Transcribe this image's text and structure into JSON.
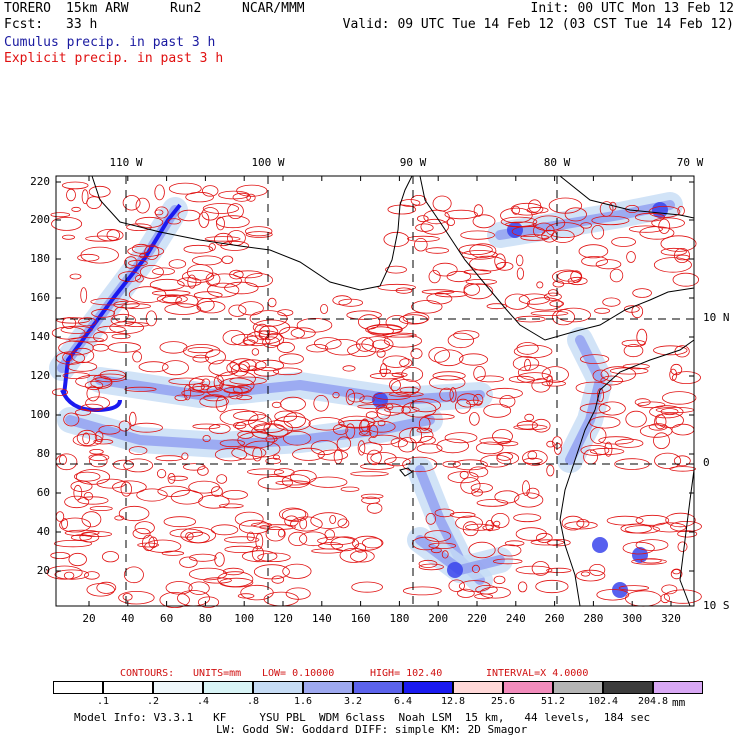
{
  "header": {
    "model": "TORERO",
    "resolution": "15km ARW",
    "run": "Run2",
    "org": "NCAR/MMM",
    "init": "Init: 00 UTC Mon 13 Feb 12",
    "fcst_label": "Fcst:",
    "fcst_value": "33 h",
    "valid": "Valid: 09 UTC Tue 14 Feb 12 (03 CST Tue 14 Feb 12)",
    "field1": "Cumulus precip. in past 3 h",
    "field2": "Explicit precip. in past 3 h"
  },
  "colors": {
    "cumulus": "#1a1aa0",
    "explicit": "#e01010",
    "land_outline": "#000000",
    "grid": "#000000"
  },
  "map": {
    "top_lon_labels": [
      "110 W",
      "100 W",
      "90 W",
      "80 W",
      "70 W"
    ],
    "right_lat_labels": [
      "10 N",
      "0",
      "10 S"
    ],
    "y_ticks": [
      "220",
      "200",
      "180",
      "160",
      "140",
      "120",
      "100",
      "80",
      "60",
      "40",
      "20"
    ],
    "x_ticks": [
      "20",
      "40",
      "60",
      "80",
      "100",
      "120",
      "140",
      "160",
      "180",
      "200",
      "220",
      "240",
      "260",
      "280",
      "300",
      "320"
    ]
  },
  "contours": {
    "label": "CONTOURS:",
    "units": "UNITS=mm",
    "low": "LOW= 0.10000",
    "high": "HIGH= 102.40",
    "interval": "INTERVAL=X 4.0000"
  },
  "legend": {
    "unit": "mm",
    "values": [
      ".1",
      ".2",
      ".4",
      ".8",
      "1.6",
      "3.2",
      "6.4",
      "12.8",
      "25.6",
      "51.2",
      "102.4",
      "204.8"
    ],
    "colors": [
      "#ffffff",
      "#ffffff",
      "#eef7fb",
      "#d8f4f6",
      "#c6dcf5",
      "#9ea9f0",
      "#5c63ec",
      "#1a1af0",
      "#ffd8d8",
      "#f28cbc",
      "#b4b4b4",
      "#3c3c3c",
      "#d8a8f4"
    ]
  },
  "footer": {
    "line1": "Model Info: V3.3.1   KF     YSU PBL  WDM 6class  Noah LSM  15 km,   44 levels,  184 sec",
    "line2": "LW: Godd SW: Goddard DIFF: simple KM: 2D Smagor"
  }
}
